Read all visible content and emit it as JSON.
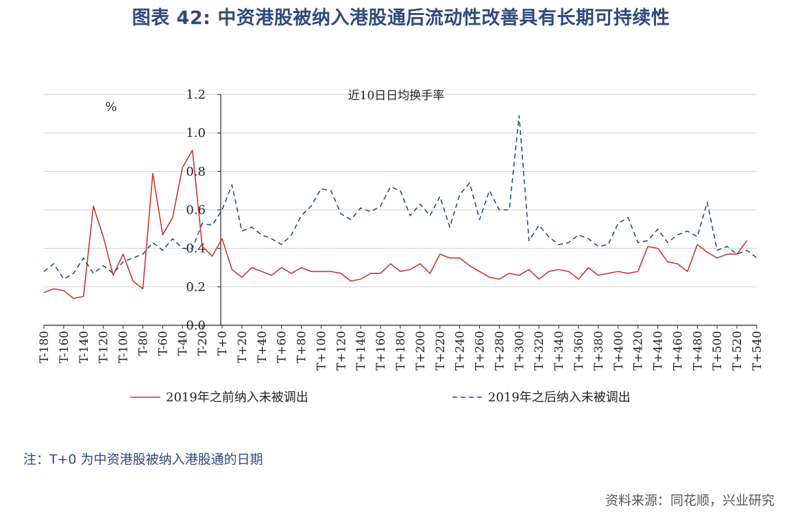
{
  "figure": {
    "title": "图表 42: 中资港股被纳入港股通后流动性改善具有长期可持续性",
    "note": "注：T+0 为中资港股被纳入港股通的日期",
    "source": "资料来源：同花顺，兴业研究"
  },
  "chart_data": {
    "type": "line",
    "title": "近10日日均换手率",
    "ylabel": "%",
    "ylim": [
      0,
      1.2
    ],
    "yticks": [
      "0.0",
      "0.2",
      "0.4",
      "0.6",
      "0.8",
      "1.0",
      "1.2"
    ],
    "grid": true,
    "legend_position": "bottom",
    "x_min": -180,
    "x_max": 540,
    "xticks": [
      "T-180",
      "T-160",
      "T-140",
      "T-120",
      "T-100",
      "T-80",
      "T-60",
      "T-40",
      "T-20",
      "T+0",
      "T+20",
      "T+40",
      "T+60",
      "T+80",
      "T+100",
      "T+120",
      "T+140",
      "T+160",
      "T+180",
      "T+200",
      "T+220",
      "T+240",
      "T+260",
      "T+280",
      "T+300",
      "T+320",
      "T+340",
      "T+360",
      "T+380",
      "T+400",
      "T+420",
      "T+440",
      "T+460",
      "T+480",
      "T+500",
      "T+520",
      "T+540"
    ],
    "series": [
      {
        "name": "2019年之前纳入未被调出",
        "color": "#cc3333",
        "style": "solid",
        "x": [
          -180,
          -170,
          -160,
          -150,
          -140,
          -130,
          -120,
          -110,
          -100,
          -90,
          -80,
          -70,
          -60,
          -50,
          -40,
          -30,
          -20,
          -10,
          0,
          10,
          20,
          30,
          40,
          50,
          60,
          70,
          80,
          90,
          100,
          110,
          120,
          130,
          140,
          150,
          160,
          170,
          180,
          190,
          200,
          210,
          220,
          230,
          240,
          250,
          260,
          270,
          280,
          290,
          300,
          310,
          320,
          330,
          340,
          350,
          360,
          370,
          380,
          390,
          400,
          410,
          420,
          430,
          440,
          450,
          460,
          470,
          480,
          490,
          500,
          510,
          520,
          530
        ],
        "y": [
          0.17,
          0.19,
          0.18,
          0.14,
          0.15,
          0.62,
          0.46,
          0.26,
          0.37,
          0.23,
          0.19,
          0.79,
          0.47,
          0.56,
          0.82,
          0.91,
          0.41,
          0.36,
          0.45,
          0.29,
          0.25,
          0.3,
          0.28,
          0.26,
          0.3,
          0.27,
          0.3,
          0.28,
          0.28,
          0.28,
          0.27,
          0.23,
          0.24,
          0.27,
          0.27,
          0.32,
          0.28,
          0.29,
          0.32,
          0.27,
          0.37,
          0.35,
          0.35,
          0.31,
          0.28,
          0.25,
          0.24,
          0.27,
          0.26,
          0.29,
          0.24,
          0.28,
          0.29,
          0.28,
          0.24,
          0.3,
          0.26,
          0.27,
          0.28,
          0.27,
          0.28,
          0.41,
          0.4,
          0.33,
          0.32,
          0.28,
          0.42,
          0.38,
          0.35,
          0.37,
          0.37,
          0.44
        ]
      },
      {
        "name": "2019年之后纳入未被调出",
        "color": "#2a4a80",
        "style": "dashed",
        "x": [
          -180,
          -170,
          -160,
          -150,
          -140,
          -130,
          -120,
          -110,
          -100,
          -90,
          -80,
          -70,
          -60,
          -50,
          -40,
          -30,
          -20,
          -10,
          0,
          10,
          20,
          30,
          40,
          50,
          60,
          70,
          80,
          90,
          100,
          110,
          120,
          130,
          140,
          150,
          160,
          170,
          180,
          190,
          200,
          210,
          220,
          230,
          240,
          250,
          260,
          270,
          280,
          290,
          300,
          310,
          320,
          330,
          340,
          350,
          360,
          370,
          380,
          390,
          400,
          410,
          420,
          430,
          440,
          450,
          460,
          470,
          480,
          490,
          500,
          510,
          520,
          530,
          540
        ],
        "y": [
          0.28,
          0.32,
          0.24,
          0.27,
          0.35,
          0.27,
          0.31,
          0.27,
          0.33,
          0.35,
          0.37,
          0.43,
          0.39,
          0.45,
          0.4,
          0.4,
          0.53,
          0.52,
          0.6,
          0.73,
          0.49,
          0.51,
          0.47,
          0.45,
          0.42,
          0.47,
          0.57,
          0.62,
          0.71,
          0.7,
          0.58,
          0.55,
          0.61,
          0.59,
          0.62,
          0.72,
          0.7,
          0.57,
          0.63,
          0.57,
          0.67,
          0.51,
          0.68,
          0.74,
          0.55,
          0.7,
          0.6,
          0.6,
          1.09,
          0.44,
          0.52,
          0.46,
          0.42,
          0.43,
          0.47,
          0.45,
          0.41,
          0.42,
          0.53,
          0.56,
          0.43,
          0.44,
          0.5,
          0.43,
          0.47,
          0.49,
          0.46,
          0.64,
          0.39,
          0.41,
          0.37,
          0.39,
          0.35
        ]
      }
    ]
  }
}
